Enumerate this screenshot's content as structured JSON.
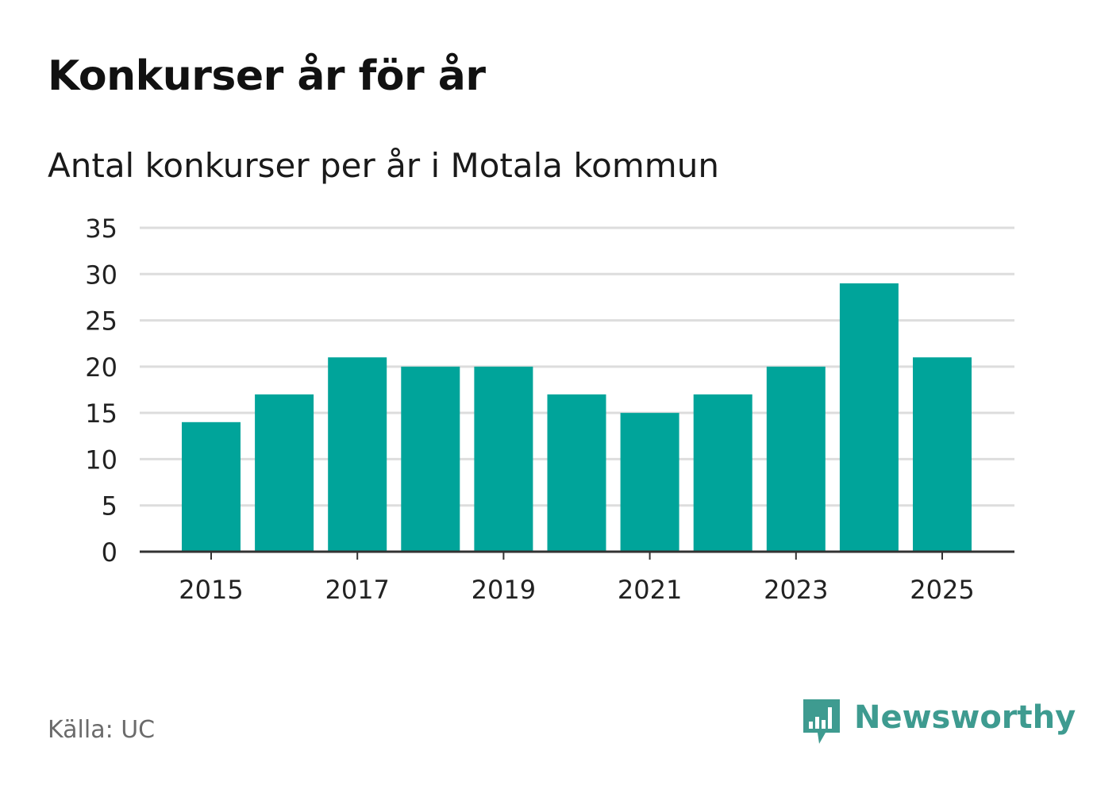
{
  "header": {
    "title": "Konkurser år för år",
    "subtitle": "Antal konkurser per år i Motala kommun"
  },
  "footer": {
    "source": "Källa: UC",
    "brand": "Newsworthy",
    "brand_icon": "newsworthy-logo-icon"
  },
  "colors": {
    "bar": "#00a49a",
    "grid": "#dddddd",
    "axis": "#333333",
    "brand": "#3e9b90"
  },
  "chart_data": {
    "type": "bar",
    "categories": [
      "2015",
      "2016",
      "2017",
      "2018",
      "2019",
      "2020",
      "2021",
      "2022",
      "2023",
      "2024",
      "2025"
    ],
    "values": [
      14,
      17,
      21,
      20,
      20,
      17,
      15,
      17,
      20,
      29,
      21
    ],
    "x_tick_labels": [
      "2015",
      "2017",
      "2019",
      "2021",
      "2023",
      "2025"
    ],
    "y_ticks": [
      0,
      5,
      10,
      15,
      20,
      25,
      30,
      35
    ],
    "ylim": [
      0,
      35
    ],
    "xlabel": "",
    "ylabel": "",
    "grid": true,
    "legend": "none"
  }
}
